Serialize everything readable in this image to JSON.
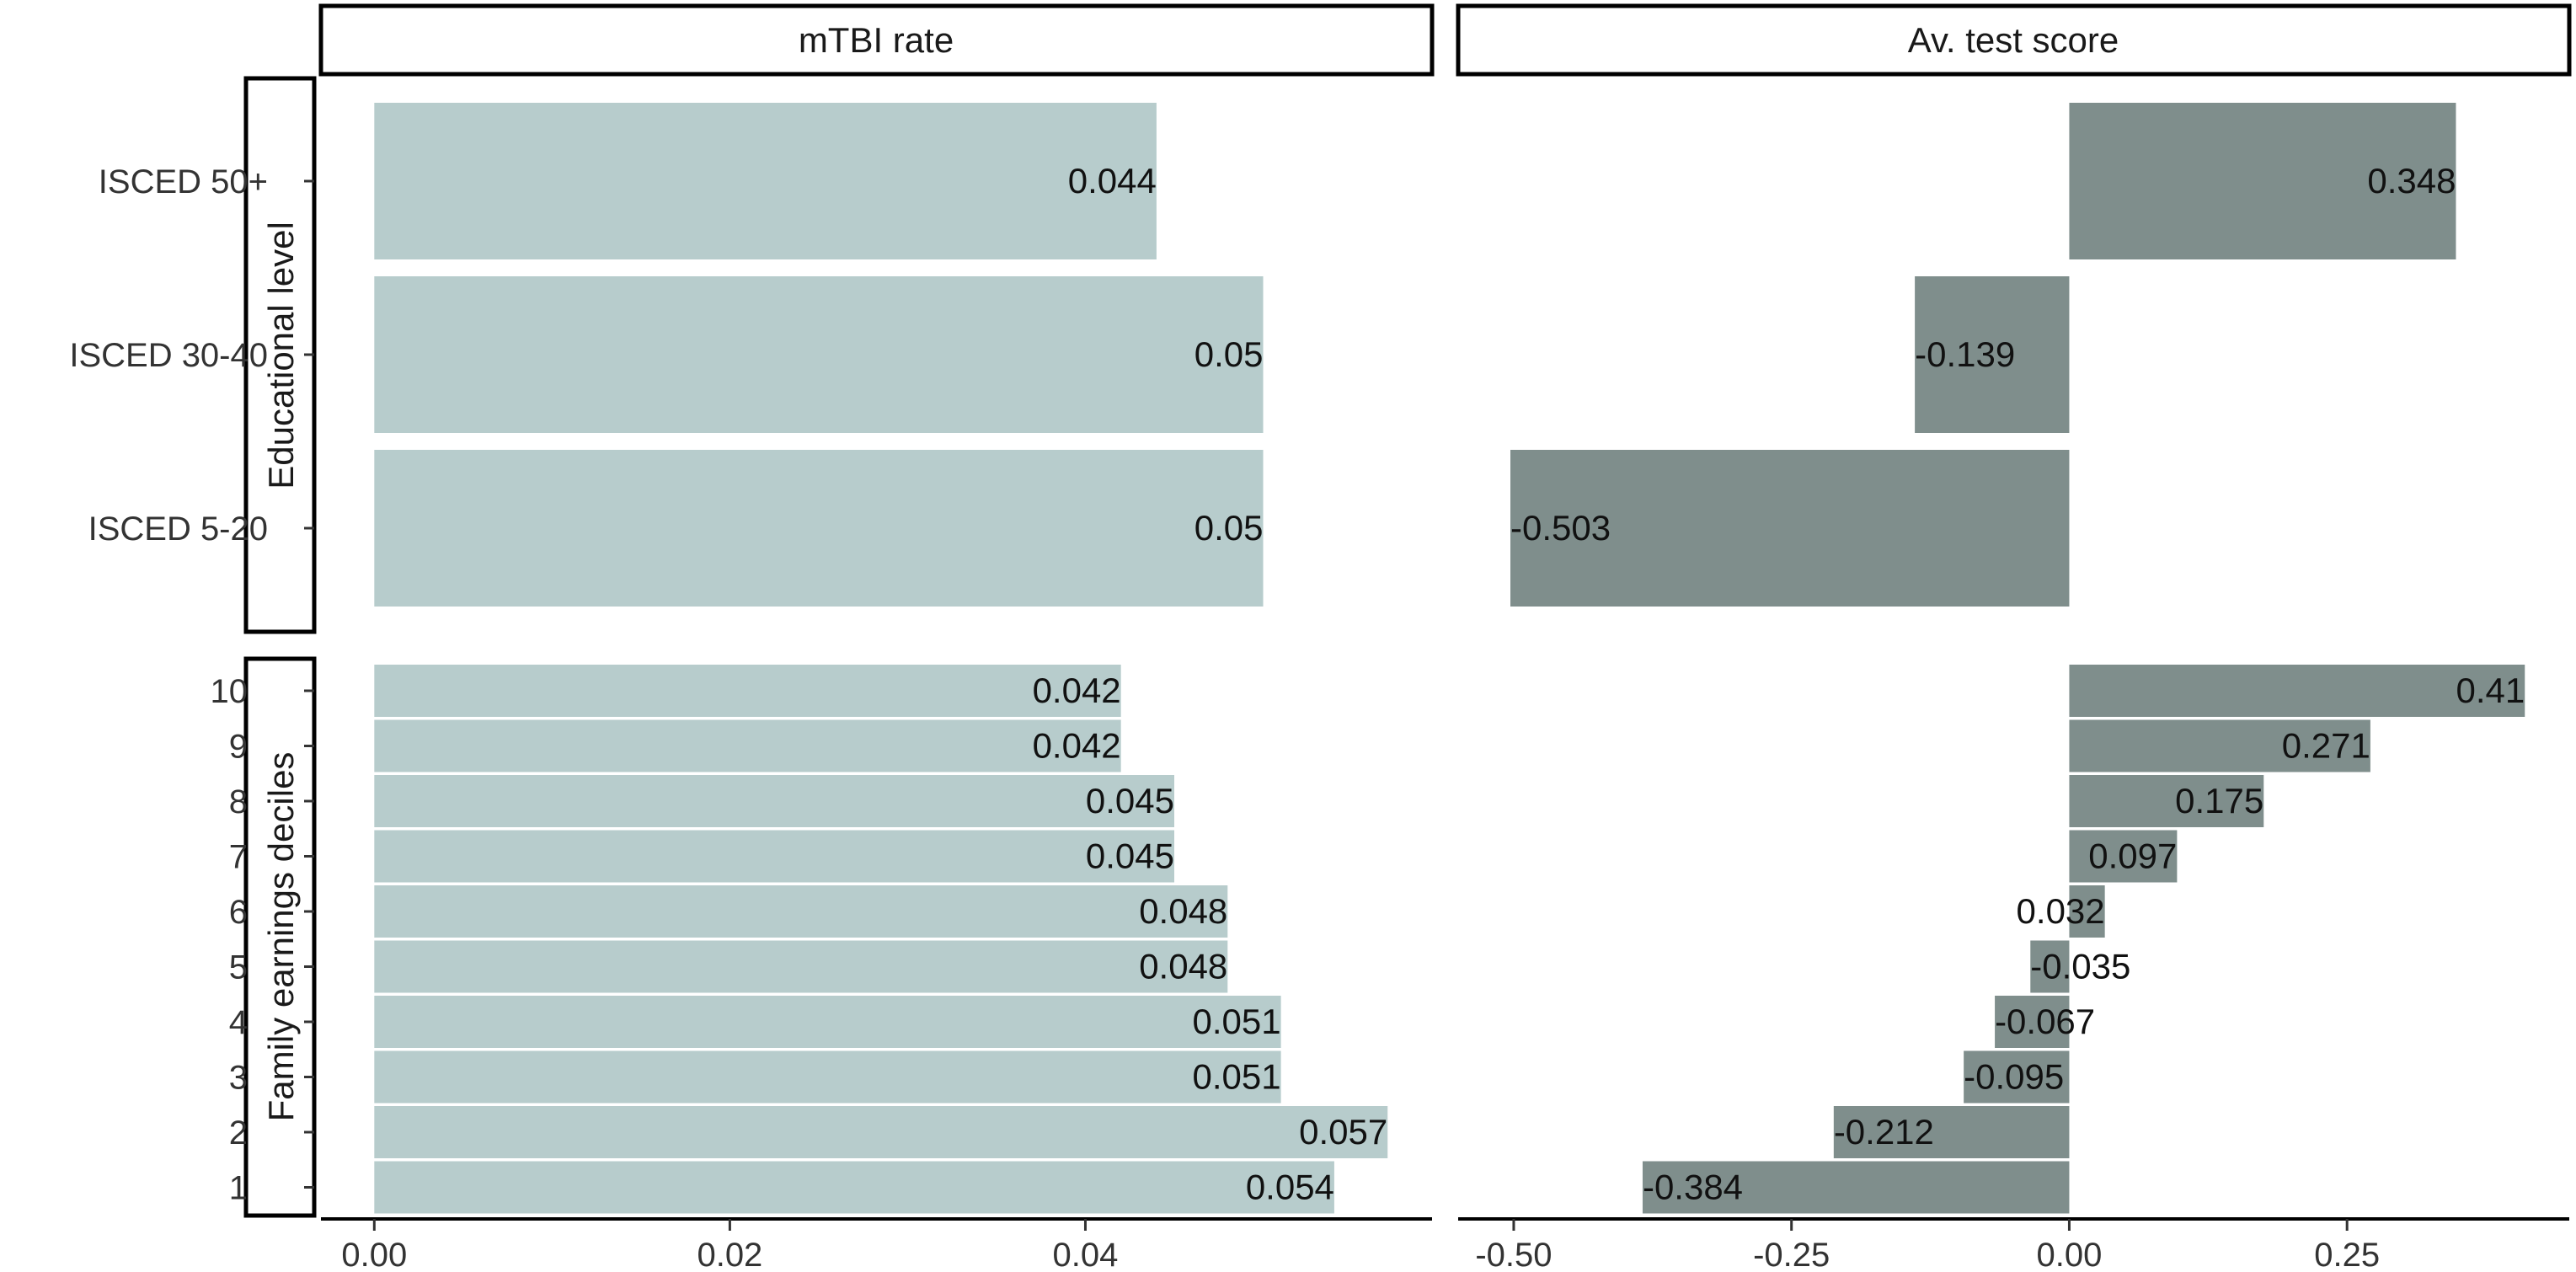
{
  "colors": {
    "mtbi": "#b7cccc",
    "score": "#7f8e8c",
    "frame": "#000000",
    "axis_text": "#333333"
  },
  "chart_data": {
    "type": "bar",
    "orientation": "horizontal",
    "facets": {
      "columns": [
        "mTBI rate",
        "Av. test score"
      ],
      "rows": [
        "Educational level",
        "Family earnings deciles"
      ]
    },
    "groups": [
      {
        "name": "Educational level",
        "categories": [
          "ISCED 50+",
          "ISCED 30-40",
          "ISCED 5-20"
        ],
        "mtbi_rate": [
          0.044,
          0.05,
          0.05
        ],
        "mtbi_labels": [
          "0.044",
          "0.05",
          "0.05"
        ],
        "test_score": [
          0.348,
          -0.139,
          -0.503
        ],
        "test_labels": [
          "0.348",
          "-0.139",
          "-0.503"
        ]
      },
      {
        "name": "Family earnings deciles",
        "categories": [
          "10",
          "9",
          "8",
          "7",
          "6",
          "5",
          "4",
          "3",
          "2",
          "1"
        ],
        "mtbi_rate": [
          0.042,
          0.042,
          0.045,
          0.045,
          0.048,
          0.048,
          0.051,
          0.051,
          0.057,
          0.054
        ],
        "mtbi_labels": [
          "0.042",
          "0.042",
          "0.045",
          "0.045",
          "0.048",
          "0.048",
          "0.051",
          "0.051",
          "0.057",
          "0.054"
        ],
        "test_score": [
          0.41,
          0.271,
          0.175,
          0.097,
          0.032,
          -0.035,
          -0.067,
          -0.095,
          -0.212,
          -0.384
        ],
        "test_labels": [
          "0.41",
          "0.271",
          "0.175",
          "0.097",
          "0.032",
          "-0.035",
          "-0.067",
          "-0.095",
          "-0.212",
          "-0.384"
        ]
      }
    ],
    "axes": {
      "mtbi": {
        "xlim": [
          -0.003,
          0.0595
        ],
        "ticks": [
          0.0,
          0.02,
          0.04
        ],
        "tick_labels": [
          "0.00",
          "0.02",
          "0.04"
        ]
      },
      "score": {
        "xlim": [
          -0.55,
          0.45
        ],
        "ticks": [
          -0.5,
          -0.25,
          0.0,
          0.25
        ],
        "tick_labels": [
          "-0.50",
          "-0.25",
          "0.00",
          "0.25"
        ]
      }
    },
    "grid": false,
    "legend": "none"
  }
}
